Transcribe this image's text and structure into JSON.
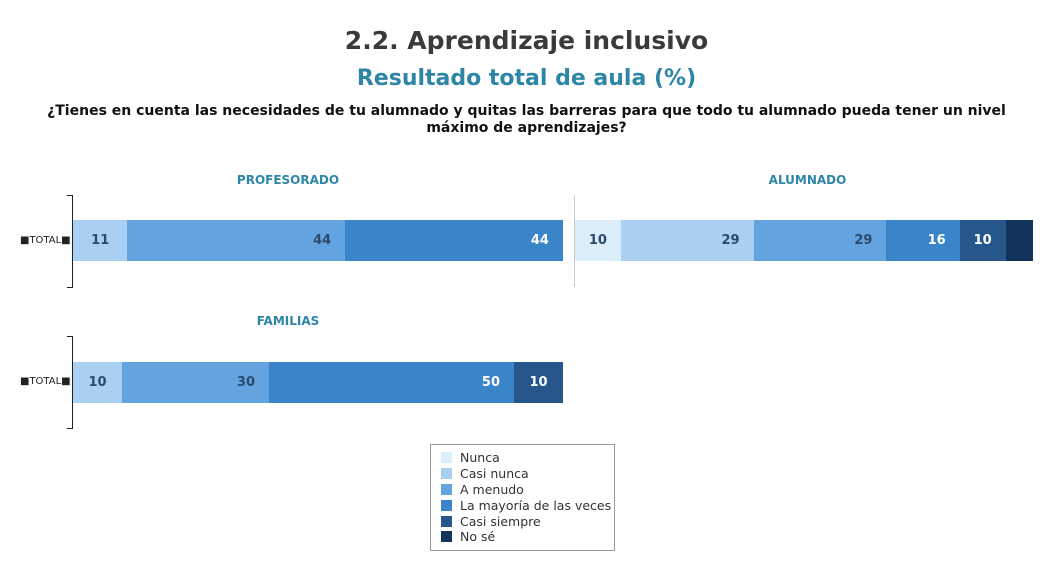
{
  "chart_data": {
    "type": "bar",
    "title": "2.2. Aprendizaje inclusivo",
    "subtitle": "Resultado total de aula (%)",
    "question": "¿Tienes en cuenta las necesidades de tu alumnado y quitas las barreras para que todo tu alumnado pueda tener un nivel máximo de aprendizajes?",
    "categories": [
      "Nunca",
      "Casi nunca",
      "A menudo",
      "La mayoría de las veces",
      "Casi siempre",
      "No sé"
    ],
    "colors": [
      "#ddeefb",
      "#a9cff2",
      "#63a4e0",
      "#3a84c9",
      "#27578a",
      "#13345a"
    ],
    "panels": [
      {
        "name": "PROFESORADO",
        "row": "■TOTAL■",
        "values": [
          0,
          11,
          44,
          44,
          0,
          0
        ],
        "labels": [
          "",
          "11",
          "44",
          "44",
          "",
          ""
        ]
      },
      {
        "name": "ALUMNADO",
        "row": "",
        "values": [
          10,
          29,
          29,
          16,
          10,
          6
        ],
        "labels": [
          "10",
          "29",
          "29",
          "16",
          "10",
          ""
        ]
      },
      {
        "name": "FAMILIAS",
        "row": "■TOTAL■",
        "values": [
          0,
          10,
          30,
          50,
          10,
          0
        ],
        "labels": [
          "",
          "10",
          "30",
          "50",
          "10",
          ""
        ]
      }
    ],
    "xlim": [
      0,
      100
    ],
    "legend_position": "bottom-center"
  }
}
